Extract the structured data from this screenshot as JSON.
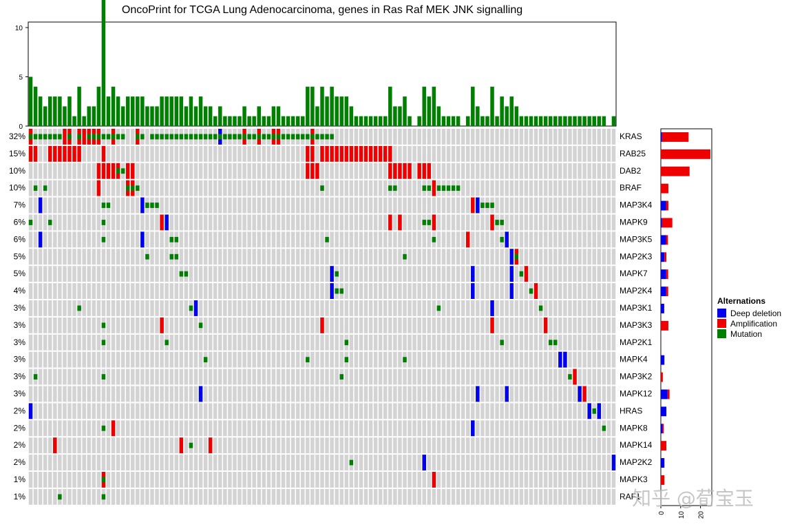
{
  "chart_data": {
    "type": "heatmap",
    "title": "OncoPrint for TCGA Lung Adenocarcinoma, genes in Ras Raf MEK JNK signalling",
    "genes": [
      "KRAS",
      "RAB25",
      "DAB2",
      "BRAF",
      "MAP3K4",
      "MAPK9",
      "MAP3K5",
      "MAP2K3",
      "MAPK7",
      "MAP2K4",
      "MAP3K1",
      "MAP3K3",
      "MAP2K1",
      "MAPK4",
      "MAP3K2",
      "MAPK12",
      "HRAS",
      "MAPK8",
      "MAPK14",
      "MAP2K2",
      "MAPK3",
      "RAF1"
    ],
    "percentages": [
      "32%",
      "15%",
      "10%",
      "10%",
      "7%",
      "6%",
      "6%",
      "5%",
      "5%",
      "4%",
      "3%",
      "3%",
      "3%",
      "3%",
      "3%",
      "3%",
      "2%",
      "2%",
      "2%",
      "2%",
      "1%",
      "1%"
    ],
    "num_samples": 121,
    "alterations": {
      "KRAS": {
        "mut": [
          0,
          1,
          2,
          3,
          4,
          5,
          6,
          8,
          10,
          12,
          13,
          14,
          15,
          16,
          17,
          18,
          19,
          22,
          23,
          25,
          26,
          27,
          28,
          29,
          30,
          31,
          32,
          33,
          34,
          35,
          36,
          37,
          38,
          39,
          40,
          41,
          42,
          43,
          44,
          45,
          46,
          47,
          48,
          49,
          50,
          51,
          52,
          53,
          54,
          55,
          56,
          57,
          58,
          59,
          60,
          61,
          62
        ],
        "amp": [
          0,
          7,
          8,
          10,
          11,
          12,
          13,
          14,
          17,
          22,
          44,
          47,
          50,
          51,
          58
        ],
        "del": [
          39
        ]
      },
      "RAB25": {
        "amp": [
          0,
          1,
          4,
          5,
          6,
          7,
          8,
          9,
          10,
          15,
          57,
          58,
          60,
          61,
          62,
          63,
          64,
          65,
          66,
          67,
          68,
          69,
          70,
          71,
          72,
          73,
          74
        ]
      },
      "DAB2": {
        "mut": [
          18,
          19
        ],
        "amp": [
          14,
          15,
          16,
          17,
          18,
          20,
          21,
          57,
          58,
          59,
          74,
          75,
          76,
          77,
          78,
          80,
          81,
          82
        ]
      },
      "BRAF": {
        "mut": [
          1,
          3,
          20,
          21,
          22,
          60,
          74,
          75,
          81,
          82,
          84,
          85,
          86,
          87,
          88
        ],
        "amp": [
          14,
          20,
          21,
          83
        ]
      },
      "MAP3K4": {
        "mut": [
          15,
          16,
          24,
          25,
          26,
          93,
          94,
          95
        ],
        "amp": [
          91
        ],
        "del": [
          2,
          23,
          92
        ]
      },
      "MAPK9": {
        "mut": [
          0,
          4,
          15,
          81,
          82,
          96,
          97
        ],
        "amp": [
          27,
          74,
          76,
          83,
          95
        ],
        "del": [
          28
        ]
      },
      "MAP3K5": {
        "mut": [
          15,
          29,
          30,
          61,
          83,
          97
        ],
        "amp": [
          90
        ],
        "del": [
          2,
          23,
          98
        ]
      },
      "MAP2K3": {
        "mut": [
          24,
          29,
          30,
          77,
          100
        ],
        "amp": [
          100
        ],
        "del": [
          99
        ]
      },
      "MAPK7": {
        "mut": [
          31,
          32,
          63,
          101
        ],
        "amp": [
          102
        ],
        "del": [
          62,
          91,
          99
        ]
      },
      "MAP2K4": {
        "mut": [
          63,
          64,
          103
        ],
        "amp": [
          104
        ],
        "del": [
          62,
          91,
          99
        ]
      },
      "MAP3K1": {
        "mut": [
          10,
          33,
          84,
          105
        ],
        "del": [
          34,
          95
        ]
      },
      "MAP3K3": {
        "mut": [
          15,
          35
        ],
        "amp": [
          27,
          60,
          95,
          106
        ]
      },
      "MAP2K1": {
        "mut": [
          15,
          28,
          65,
          97,
          107,
          108
        ]
      },
      "MAPK4": {
        "mut": [
          36,
          57,
          65,
          77
        ],
        "del": [
          109,
          110
        ]
      },
      "MAP3K2": {
        "mut": [
          1,
          15,
          64,
          111
        ],
        "amp": [
          112
        ]
      },
      "MAPK12": {
        "amp": [
          114
        ],
        "del": [
          35,
          92,
          98,
          113
        ]
      },
      "HRAS": {
        "mut": [
          116
        ],
        "del": [
          0,
          115,
          117
        ]
      },
      "MAPK8": {
        "mut": [
          15,
          118
        ],
        "amp": [
          17
        ],
        "del": [
          91
        ]
      },
      "MAPK14": {
        "mut": [
          33
        ],
        "amp": [
          5,
          31,
          37
        ]
      },
      "MAP2K2": {
        "mut": [
          66
        ],
        "del": [
          81,
          120
        ]
      },
      "MAPK3": {
        "mut": [
          15
        ],
        "amp": [
          15,
          83
        ]
      },
      "RAF1": {
        "mut": [
          6,
          15
        ]
      }
    },
    "top_barplot": {
      "yticks": [
        "0",
        "5",
        "10"
      ],
      "ylim": [
        0,
        10.5
      ]
    },
    "right_barplot": {
      "xticks": [
        "0",
        "10",
        "20"
      ],
      "xlim": [
        0,
        25
      ],
      "values": [
        {
          "del": 0.6,
          "amp": 13.4
        },
        {
          "del": 0,
          "amp": 25
        },
        {
          "del": 0,
          "amp": 14.5
        },
        {
          "del": 0,
          "amp": 3.8
        },
        {
          "del": 2.6,
          "amp": 1.2
        },
        {
          "del": 0.6,
          "amp": 5.2
        },
        {
          "del": 2.6,
          "amp": 1.0
        },
        {
          "del": 1.8,
          "amp": 1.0
        },
        {
          "del": 2.7,
          "amp": 1.0
        },
        {
          "del": 2.7,
          "amp": 1.0
        },
        {
          "del": 1.7,
          "amp": 0
        },
        {
          "del": 0,
          "amp": 3.8
        },
        {
          "del": 0,
          "amp": 0
        },
        {
          "del": 1.8,
          "amp": 0
        },
        {
          "del": 0,
          "amp": 1.0
        },
        {
          "del": 3.4,
          "amp": 1.0
        },
        {
          "del": 2.8,
          "amp": 0
        },
        {
          "del": 0.9,
          "amp": 0.6
        },
        {
          "del": 0,
          "amp": 2.8
        },
        {
          "del": 1.8,
          "amp": 0
        },
        {
          "del": 0,
          "amp": 1.8
        },
        {
          "del": 0,
          "amp": 0
        }
      ]
    },
    "legend": {
      "title": "Alternations",
      "items": [
        {
          "label": "Deep deletion",
          "color": "#0000ee"
        },
        {
          "label": "Amplification",
          "color": "#ee0000"
        },
        {
          "label": "Mutation",
          "color": "#008000"
        }
      ]
    },
    "colors": {
      "background": "#d3d3d3",
      "deletion": "#0000ee",
      "amplification": "#ee0000",
      "mutation": "#008000",
      "top_bar": "#008000"
    }
  },
  "watermark": "知乎 @荀宝玉"
}
